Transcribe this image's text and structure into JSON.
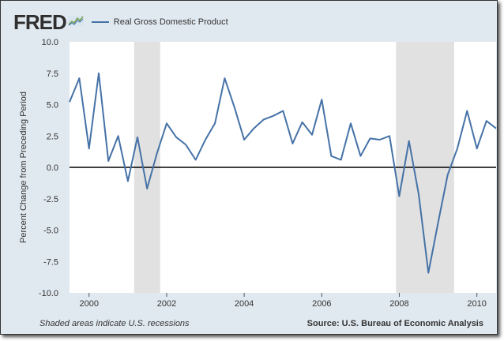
{
  "header": {
    "logo": "FRED",
    "legend_label": "Real Gross Domestic Product"
  },
  "footer": {
    "note": "Shaded areas indicate U.S. recessions",
    "source": "Source: U.S. Bureau of Economic Analysis"
  },
  "colors": {
    "series": "#4572a7",
    "recession": "#e1e1e1",
    "background": "#e1e9f0",
    "plot_background": "#ffffff"
  },
  "chart_data": {
    "type": "line",
    "title": "",
    "xlabel": "",
    "ylabel": "Percent Change from Preceding Period",
    "xlim": [
      "1999-07-01",
      "2010-07-01"
    ],
    "ylim": [
      -10.0,
      10.0
    ],
    "y_ticks": [
      "10.0",
      "7.5",
      "5.0",
      "2.5",
      "0.0",
      "-2.5",
      "-5.0",
      "-7.5",
      "-10.0"
    ],
    "x_ticks": [
      "2000",
      "2002",
      "2004",
      "2006",
      "2008",
      "2010"
    ],
    "grid": false,
    "recessions": [
      {
        "start": "2001-03-01",
        "end": "2001-11-01"
      },
      {
        "start": "2007-12-01",
        "end": "2009-06-01"
      }
    ],
    "series": [
      {
        "name": "Real Gross Domestic Product",
        "x": [
          "1999-07-01",
          "1999-10-01",
          "2000-01-01",
          "2000-04-01",
          "2000-07-01",
          "2000-10-01",
          "2001-01-01",
          "2001-04-01",
          "2001-07-01",
          "2001-10-01",
          "2002-01-01",
          "2002-04-01",
          "2002-07-01",
          "2002-10-01",
          "2003-01-01",
          "2003-04-01",
          "2003-07-01",
          "2003-10-01",
          "2004-01-01",
          "2004-04-01",
          "2004-07-01",
          "2004-10-01",
          "2005-01-01",
          "2005-04-01",
          "2005-07-01",
          "2005-10-01",
          "2006-01-01",
          "2006-04-01",
          "2006-07-01",
          "2006-10-01",
          "2007-01-01",
          "2007-04-01",
          "2007-07-01",
          "2007-10-01",
          "2008-01-01",
          "2008-04-01",
          "2008-07-01",
          "2008-10-01",
          "2009-01-01",
          "2009-04-01",
          "2009-07-01",
          "2009-10-01",
          "2010-01-01",
          "2010-04-01",
          "2010-07-01"
        ],
        "values": [
          5.2,
          7.1,
          1.5,
          7.5,
          0.5,
          2.5,
          -1.1,
          2.4,
          -1.7,
          1.1,
          3.5,
          2.4,
          1.8,
          0.6,
          2.2,
          3.5,
          7.1,
          4.8,
          2.2,
          3.1,
          3.8,
          4.1,
          4.5,
          1.9,
          3.6,
          2.6,
          5.4,
          0.9,
          0.6,
          3.5,
          0.9,
          2.3,
          2.2,
          2.5,
          -2.3,
          2.1,
          -2.1,
          -8.4,
          -4.4,
          -0.6,
          1.5,
          4.5,
          1.5,
          3.7,
          3.1
        ]
      }
    ]
  }
}
